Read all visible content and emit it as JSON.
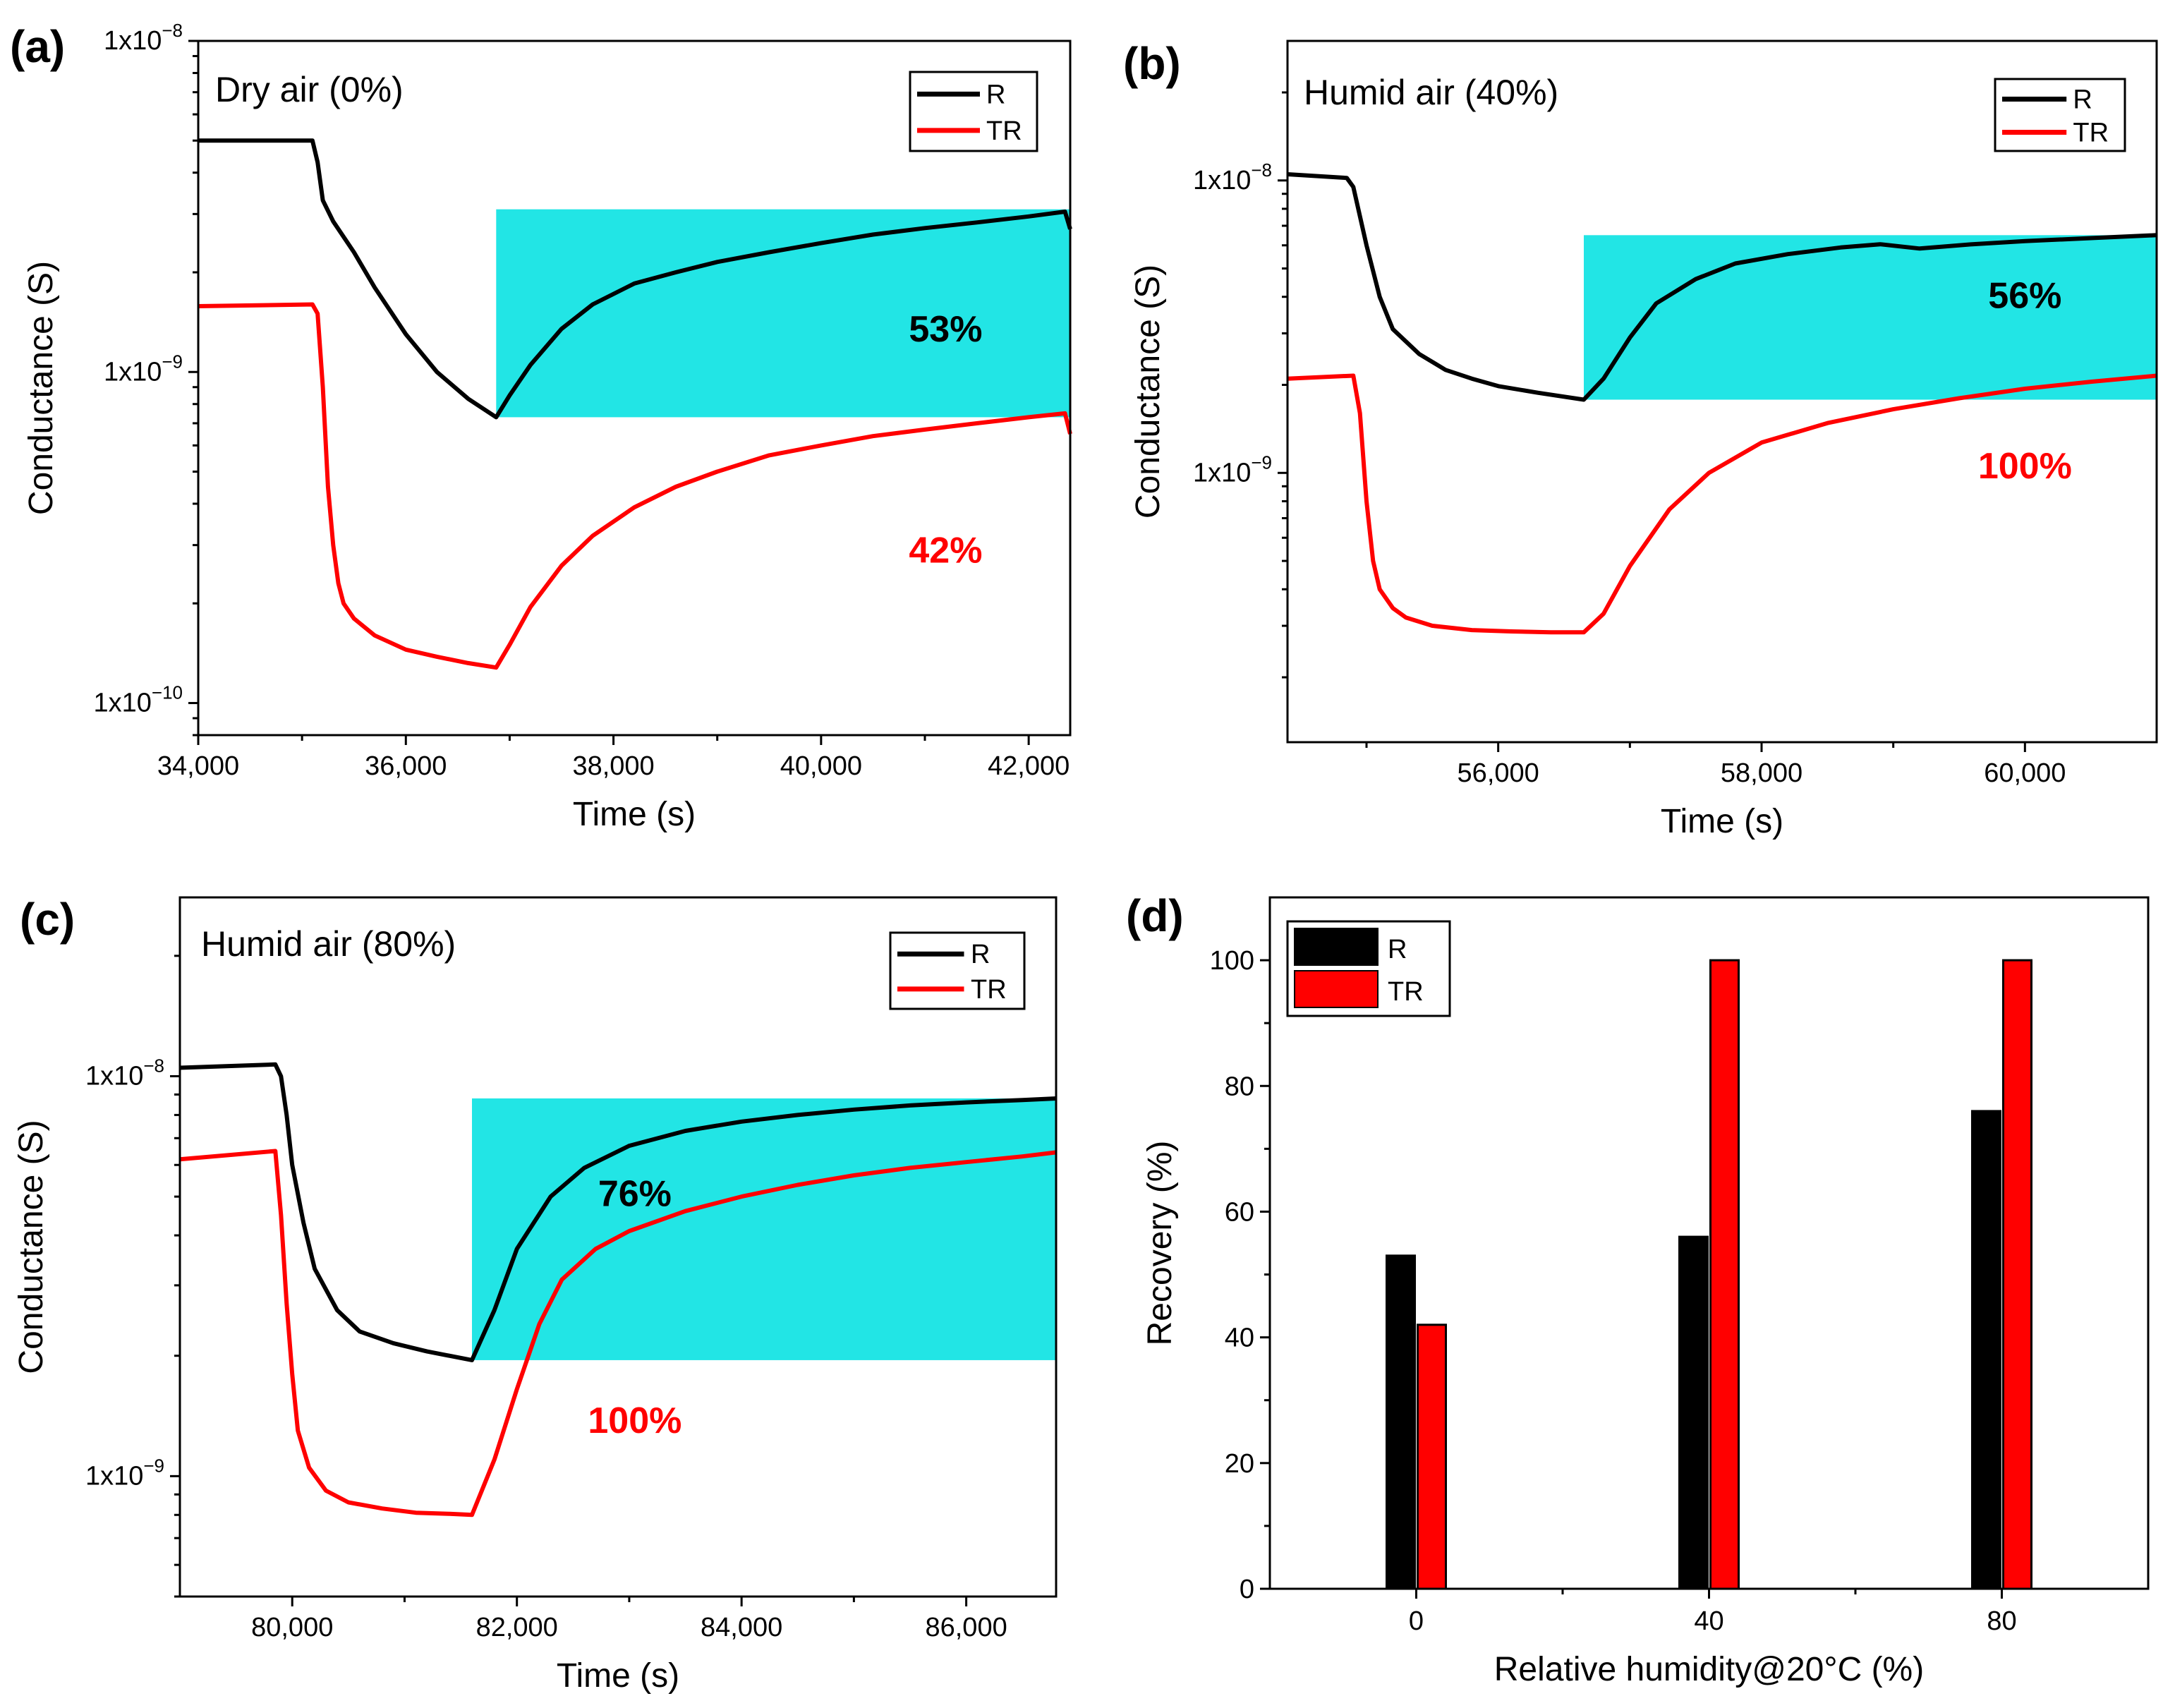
{
  "chart_data": [
    {
      "id": "a",
      "type": "line",
      "panel_label": "(a)",
      "condition": "Dry air (0%)",
      "xlabel": "Time (s)",
      "ylabel": "Conductance (S)",
      "xlim": [
        34000,
        42400
      ],
      "ylim": [
        8e-11,
        1e-08
      ],
      "yscale": "log",
      "xticks": [
        34000,
        36000,
        38000,
        40000,
        42000
      ],
      "xtick_labels": [
        "34,000",
        "36,000",
        "38,000",
        "40,000",
        "42,000"
      ],
      "yticks": [
        1e-10,
        1e-09,
        1e-08
      ],
      "ytick_labels": [
        {
          "m": "1x10",
          "e": "−10"
        },
        {
          "m": "1x10",
          "e": "−9"
        },
        {
          "m": "1x10",
          "e": "−8"
        }
      ],
      "highlight": {
        "x": [
          36870,
          42400
        ],
        "y": [
          7.3e-10,
          3.1e-09
        ],
        "color": "#22e5e5"
      },
      "legend": [
        "R",
        "TR"
      ],
      "series": [
        {
          "name": "R",
          "color": "#000000",
          "x": [
            34000,
            35100,
            35150,
            35200,
            35300,
            35500,
            35700,
            36000,
            36300,
            36600,
            36870,
            37000,
            37200,
            37500,
            37800,
            38200,
            38600,
            39000,
            39500,
            40000,
            40500,
            41000,
            41500,
            42000,
            42350,
            42400
          ],
          "y": [
            5e-09,
            5e-09,
            4.3e-09,
            3.3e-09,
            2.85e-09,
            2.3e-09,
            1.8e-09,
            1.3e-09,
            1e-09,
            8.3e-10,
            7.3e-10,
            8.5e-10,
            1.05e-09,
            1.35e-09,
            1.6e-09,
            1.85e-09,
            2e-09,
            2.15e-09,
            2.3e-09,
            2.45e-09,
            2.6e-09,
            2.72e-09,
            2.83e-09,
            2.95e-09,
            3.05e-09,
            2.7e-09
          ]
        },
        {
          "name": "TR",
          "color": "#ff0000",
          "x": [
            34000,
            35100,
            35150,
            35200,
            35250,
            35300,
            35350,
            35400,
            35500,
            35700,
            36000,
            36300,
            36600,
            36870,
            37000,
            37200,
            37500,
            37800,
            38200,
            38600,
            39000,
            39500,
            40000,
            40500,
            41000,
            41500,
            42000,
            42350,
            42400
          ],
          "y": [
            1.58e-09,
            1.6e-09,
            1.5e-09,
            9e-10,
            4.5e-10,
            3e-10,
            2.3e-10,
            2e-10,
            1.8e-10,
            1.6e-10,
            1.45e-10,
            1.38e-10,
            1.32e-10,
            1.28e-10,
            1.5e-10,
            1.95e-10,
            2.6e-10,
            3.2e-10,
            3.9e-10,
            4.5e-10,
            5e-10,
            5.6e-10,
            6e-10,
            6.4e-10,
            6.7e-10,
            7e-10,
            7.3e-10,
            7.5e-10,
            6.5e-10
          ]
        }
      ],
      "annotations": [
        {
          "text": "53%",
          "x": 41200,
          "y": 1.35e-09,
          "color": "#000000"
        },
        {
          "text": "42%",
          "x": 41200,
          "y": 2.9e-10,
          "color": "#ff0000"
        }
      ]
    },
    {
      "id": "b",
      "type": "line",
      "panel_label": "(b)",
      "condition": "Humid air (40%)",
      "xlabel": "Time (s)",
      "ylabel": "Conductance (S)",
      "xlim": [
        54400,
        61000
      ],
      "ylim": [
        1.2e-10,
        3e-08
      ],
      "yscale": "log",
      "xticks": [
        56000,
        58000,
        60000
      ],
      "xtick_labels": [
        "56,000",
        "58,000",
        "60,000"
      ],
      "yticks": [
        1e-09,
        1e-08
      ],
      "ytick_labels": [
        {
          "m": "1x10",
          "e": "−9"
        },
        {
          "m": "1x10",
          "e": "−8"
        }
      ],
      "highlight": {
        "x": [
          56650,
          61000
        ],
        "y": [
          1.78e-09,
          6.5e-09
        ],
        "color": "#22e5e5"
      },
      "legend": [
        "R",
        "TR"
      ],
      "series": [
        {
          "name": "R",
          "color": "#000000",
          "x": [
            54400,
            54850,
            54900,
            55000,
            55100,
            55200,
            55400,
            55600,
            55800,
            56000,
            56300,
            56650,
            56800,
            57000,
            57200,
            57500,
            57800,
            58200,
            58600,
            58900,
            59200,
            59600,
            60000,
            60500,
            61000
          ],
          "y": [
            1.05e-08,
            1.02e-08,
            9.5e-09,
            6e-09,
            4e-09,
            3.1e-09,
            2.55e-09,
            2.25e-09,
            2.1e-09,
            1.98e-09,
            1.88e-09,
            1.78e-09,
            2.1e-09,
            2.9e-09,
            3.8e-09,
            4.6e-09,
            5.2e-09,
            5.6e-09,
            5.9e-09,
            6.05e-09,
            5.85e-09,
            6.05e-09,
            6.2e-09,
            6.35e-09,
            6.5e-09
          ]
        },
        {
          "name": "TR",
          "color": "#ff0000",
          "x": [
            54400,
            54900,
            54950,
            55000,
            55050,
            55100,
            55200,
            55300,
            55500,
            55800,
            56100,
            56400,
            56650,
            56800,
            57000,
            57300,
            57600,
            58000,
            58500,
            59000,
            59500,
            60000,
            60500,
            61000
          ],
          "y": [
            2.1e-09,
            2.15e-09,
            1.6e-09,
            8e-10,
            5e-10,
            4e-10,
            3.45e-10,
            3.2e-10,
            3e-10,
            2.9e-10,
            2.87e-10,
            2.85e-10,
            2.85e-10,
            3.3e-10,
            4.8e-10,
            7.5e-10,
            1e-09,
            1.27e-09,
            1.48e-09,
            1.65e-09,
            1.8e-09,
            1.94e-09,
            2.05e-09,
            2.15e-09
          ]
        }
      ],
      "annotations": [
        {
          "text": "56%",
          "x": 60000,
          "y": 4.05e-09,
          "color": "#000000"
        },
        {
          "text": "100%",
          "x": 60000,
          "y": 1.06e-09,
          "color": "#ff0000"
        }
      ]
    },
    {
      "id": "c",
      "type": "line",
      "panel_label": "(c)",
      "condition": "Humid air (80%)",
      "xlabel": "Time (s)",
      "ylabel": "Conductance (S)",
      "xlim": [
        79000,
        86800
      ],
      "ylim": [
        5e-10,
        2.8e-08
      ],
      "yscale": "log",
      "xticks": [
        80000,
        82000,
        84000,
        86000
      ],
      "xtick_labels": [
        "80,000",
        "82,000",
        "84,000",
        "86,000"
      ],
      "yticks": [
        1e-09,
        1e-08
      ],
      "ytick_labels": [
        {
          "m": "1x10",
          "e": "−9"
        },
        {
          "m": "1x10",
          "e": "−8"
        }
      ],
      "highlight": {
        "x": [
          81600,
          86800
        ],
        "y": [
          1.95e-09,
          8.8e-09
        ],
        "color": "#22e5e5"
      },
      "legend": [
        "R",
        "TR"
      ],
      "series": [
        {
          "name": "R",
          "color": "#000000",
          "x": [
            79000,
            79850,
            79900,
            79950,
            80000,
            80100,
            80200,
            80400,
            80600,
            80900,
            81200,
            81600,
            81800,
            82000,
            82300,
            82600,
            83000,
            83500,
            84000,
            84500,
            85000,
            85500,
            86000,
            86500,
            86800
          ],
          "y": [
            1.05e-08,
            1.07e-08,
            1e-08,
            8e-09,
            6e-09,
            4.3e-09,
            3.3e-09,
            2.6e-09,
            2.3e-09,
            2.15e-09,
            2.05e-09,
            1.95e-09,
            2.6e-09,
            3.7e-09,
            5e-09,
            5.9e-09,
            6.7e-09,
            7.3e-09,
            7.7e-09,
            8e-09,
            8.25e-09,
            8.45e-09,
            8.6e-09,
            8.72e-09,
            8.8e-09
          ]
        },
        {
          "name": "TR",
          "color": "#ff0000",
          "x": [
            79000,
            79850,
            79900,
            79950,
            80000,
            80050,
            80150,
            80300,
            80500,
            80800,
            81100,
            81400,
            81600,
            81800,
            82000,
            82200,
            82400,
            82700,
            83000,
            83500,
            84000,
            84500,
            85000,
            85500,
            86000,
            86500,
            86800
          ],
          "y": [
            6.2e-09,
            6.5e-09,
            4.5e-09,
            2.7e-09,
            1.8e-09,
            1.3e-09,
            1.05e-09,
            9.2e-10,
            8.6e-10,
            8.3e-10,
            8.1e-10,
            8.05e-10,
            8e-10,
            1.1e-09,
            1.65e-09,
            2.4e-09,
            3.1e-09,
            3.7e-09,
            4.1e-09,
            4.6e-09,
            5e-09,
            5.35e-09,
            5.65e-09,
            5.9e-09,
            6.1e-09,
            6.3e-09,
            6.45e-09
          ]
        }
      ],
      "annotations": [
        {
          "text": "76%",
          "x": 83050,
          "y": 5.1e-09,
          "color": "#000000"
        },
        {
          "text": "100%",
          "x": 83050,
          "y": 1.38e-09,
          "color": "#ff0000"
        }
      ]
    },
    {
      "id": "d",
      "type": "bar",
      "panel_label": "(d)",
      "xlabel": "Relative humidity@20°C (%)",
      "ylabel": "Recovery (%)",
      "categories": [
        "0",
        "40",
        "80"
      ],
      "ylim": [
        0,
        110
      ],
      "yticks": [
        0,
        20,
        40,
        60,
        80,
        100
      ],
      "series": [
        {
          "name": "R",
          "color": "#000000",
          "values": [
            53,
            56,
            76
          ]
        },
        {
          "name": "TR",
          "color": "#ff0000",
          "values": [
            42,
            100,
            100
          ]
        }
      ],
      "legend": [
        "R",
        "TR"
      ]
    }
  ]
}
